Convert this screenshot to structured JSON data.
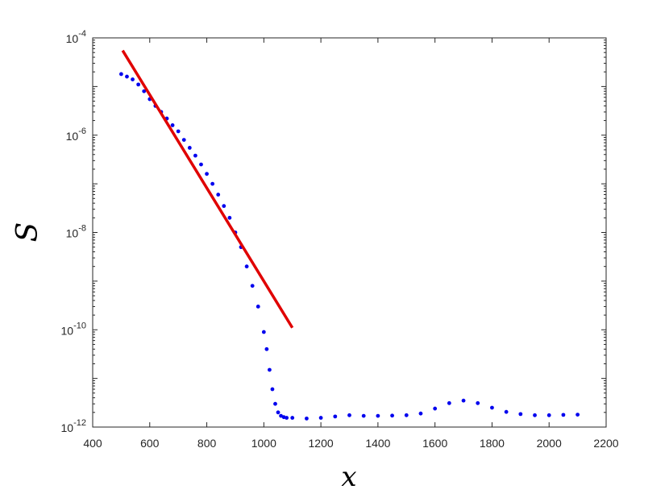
{
  "chart_data": {
    "type": "scatter",
    "title": "",
    "xlabel": "x",
    "ylabel": "S",
    "xlim": [
      400,
      2200
    ],
    "ylim": [
      1e-12,
      0.0001
    ],
    "yscale": "log",
    "grid": false,
    "legend": "none",
    "x_ticks": [
      400,
      600,
      800,
      1000,
      1200,
      1400,
      1600,
      1800,
      2000,
      2200
    ],
    "x_tick_labels": [
      "400",
      "600",
      "800",
      "1000",
      "1200",
      "1400",
      "1600",
      "1800",
      "2000",
      "2200"
    ],
    "y_ticks": [
      1e-12,
      1e-10,
      1e-08,
      1e-06,
      0.0001
    ],
    "y_tick_labels": [
      {
        "base": "10",
        "exp": "-12"
      },
      {
        "base": "10",
        "exp": "-10"
      },
      {
        "base": "10",
        "exp": "-8"
      },
      {
        "base": "10",
        "exp": "-6"
      },
      {
        "base": "10",
        "exp": "-4"
      }
    ],
    "series": [
      {
        "kind": "scatter",
        "color": "#0000ee",
        "x": [
          500,
          520,
          540,
          560,
          580,
          600,
          620,
          640,
          660,
          680,
          700,
          720,
          740,
          760,
          780,
          800,
          820,
          840,
          860,
          880,
          900,
          920,
          940,
          960,
          980,
          1000,
          1010,
          1020,
          1030,
          1040,
          1050,
          1060,
          1070,
          1080,
          1100,
          1150,
          1200,
          1250,
          1300,
          1350,
          1400,
          1450,
          1500,
          1550,
          1600,
          1650,
          1700,
          1750,
          1800,
          1850,
          1900,
          1950,
          2000,
          2050,
          2100
        ],
        "y": [
          1.8e-05,
          1.6e-05,
          1.4e-05,
          1.1e-05,
          8e-06,
          5.5e-06,
          4e-06,
          3e-06,
          2.2e-06,
          1.6e-06,
          1.2e-06,
          8e-07,
          5.5e-07,
          3.8e-07,
          2.5e-07,
          1.6e-07,
          1e-07,
          6e-08,
          3.5e-08,
          2e-08,
          1e-08,
          5e-09,
          2e-09,
          8e-10,
          3e-10,
          9e-11,
          4e-11,
          1.5e-11,
          6e-12,
          3e-12,
          2e-12,
          1.7e-12,
          1.6e-12,
          1.55e-12,
          1.55e-12,
          1.5e-12,
          1.55e-12,
          1.65e-12,
          1.75e-12,
          1.7e-12,
          1.7e-12,
          1.72e-12,
          1.75e-12,
          1.9e-12,
          2.4e-12,
          3.1e-12,
          3.5e-12,
          3.1e-12,
          2.5e-12,
          2.05e-12,
          1.85e-12,
          1.75e-12,
          1.75e-12,
          1.78e-12,
          1.8e-12
        ]
      },
      {
        "kind": "line",
        "color": "#e00000",
        "x": [
          505,
          1100
        ],
        "y": [
          5.5e-05,
          1.1e-10
        ]
      }
    ]
  }
}
